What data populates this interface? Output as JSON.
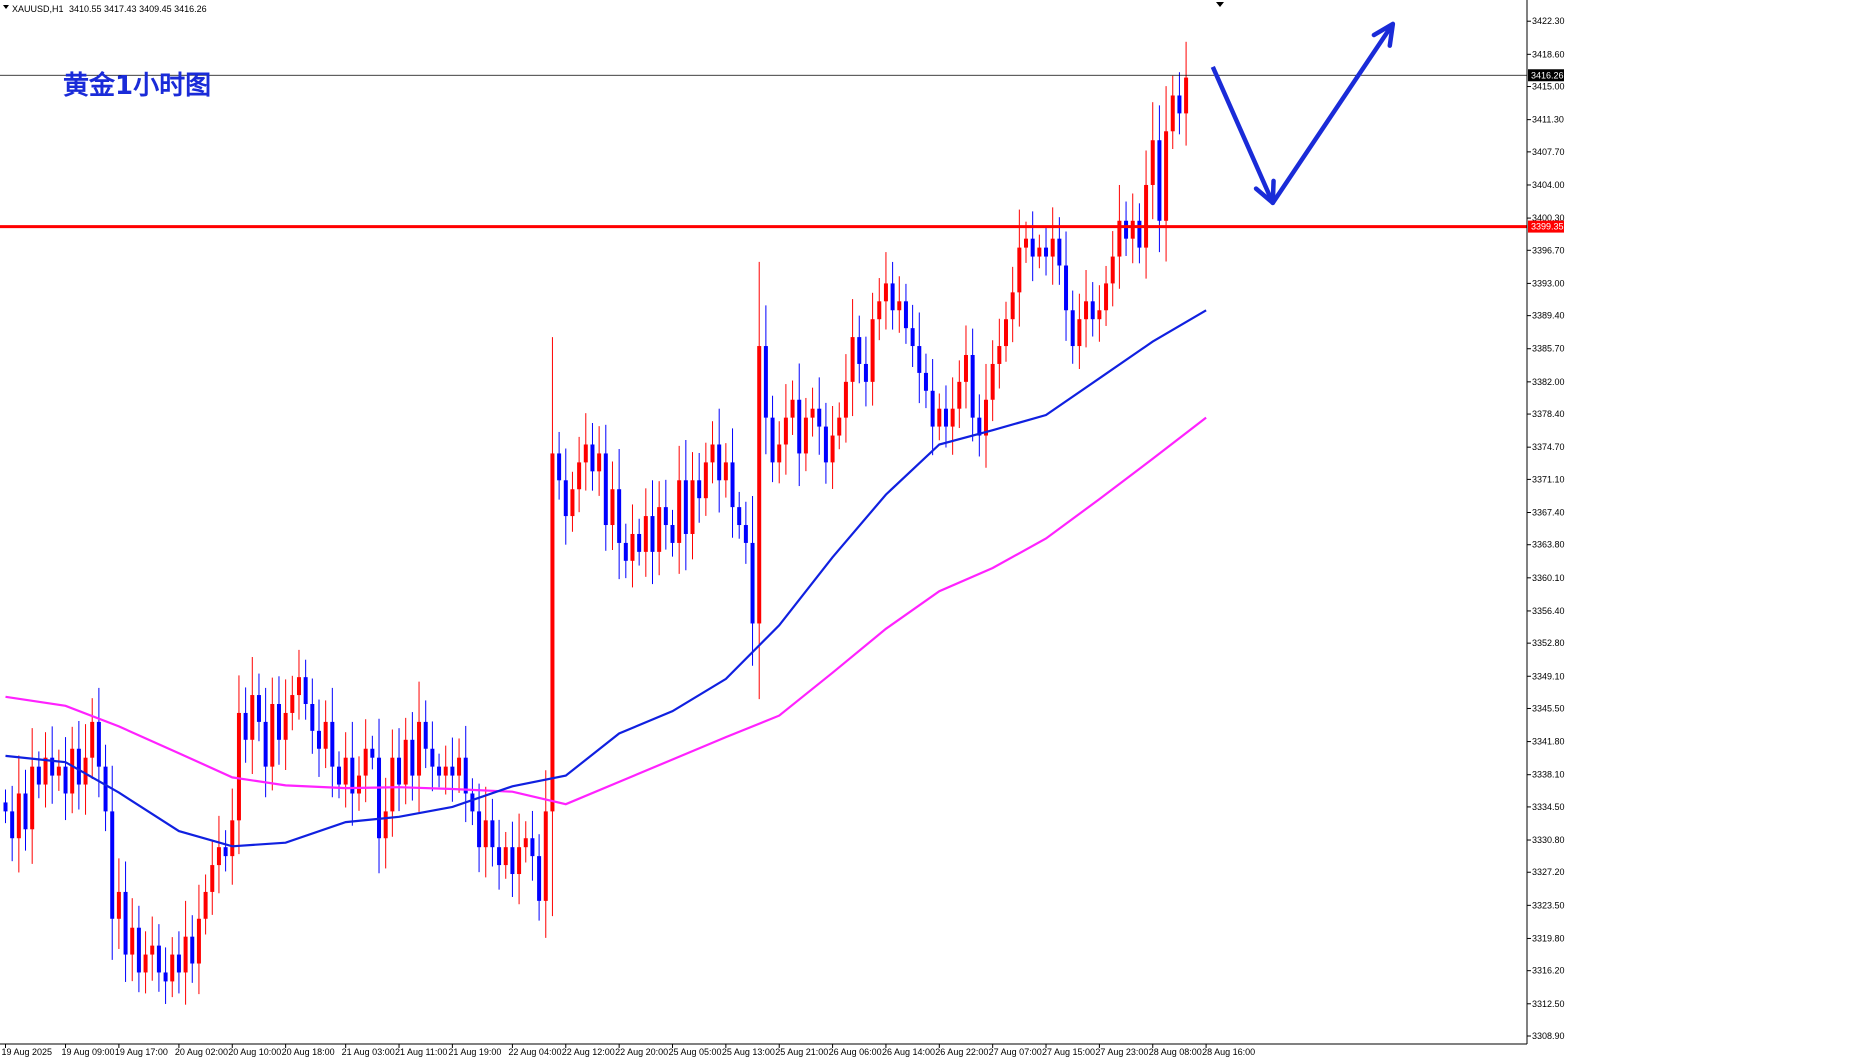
{
  "header": {
    "symbol_label": "XAUUSD,H1",
    "ohlc_text": "3410.55 3417.43 3409.45 3416.26",
    "dropdown_icon": "triangle-down-icon"
  },
  "annotation_title": "黄金1小时图",
  "colors": {
    "bull": "#ff0000",
    "bear": "#0000ff",
    "ma_fast": "#1020e0",
    "ma_slow": "#ff22ff",
    "resistance": "#ff0000",
    "arrow": "#1a2bd8",
    "current_price_line": "#000000"
  },
  "chart_data": {
    "type": "candlestick",
    "timeframe": "H1",
    "ylim": [
      3308.9,
      3424.0
    ],
    "y_ticks": [
      "3422.30",
      "3418.60",
      "3415.00",
      "3411.30",
      "3407.70",
      "3404.00",
      "3400.30",
      "3396.70",
      "3393.00",
      "3389.40",
      "3385.70",
      "3382.00",
      "3378.40",
      "3374.70",
      "3371.10",
      "3367.40",
      "3363.80",
      "3360.10",
      "3356.40",
      "3352.80",
      "3349.10",
      "3345.50",
      "3341.80",
      "3338.10",
      "3334.50",
      "3330.80",
      "3327.20",
      "3323.50",
      "3319.80",
      "3316.20",
      "3312.50",
      "3308.90"
    ],
    "x_ticks": [
      {
        "label": "19 Aug 2025",
        "bar": 0
      },
      {
        "label": "19 Aug 09:00",
        "bar": 9
      },
      {
        "label": "19 Aug 17:00",
        "bar": 17
      },
      {
        "label": "20 Aug 02:00",
        "bar": 26
      },
      {
        "label": "20 Aug 10:00",
        "bar": 34
      },
      {
        "label": "20 Aug 18:00",
        "bar": 42
      },
      {
        "label": "21 Aug 03:00",
        "bar": 51
      },
      {
        "label": "21 Aug 11:00",
        "bar": 59
      },
      {
        "label": "21 Aug 19:00",
        "bar": 67
      },
      {
        "label": "22 Aug 04:00",
        "bar": 76
      },
      {
        "label": "22 Aug 12:00",
        "bar": 84
      },
      {
        "label": "22 Aug 20:00",
        "bar": 92
      },
      {
        "label": "25 Aug 05:00",
        "bar": 100
      },
      {
        "label": "25 Aug 13:00",
        "bar": 108
      },
      {
        "label": "25 Aug 21:00",
        "bar": 116
      },
      {
        "label": "26 Aug 06:00",
        "bar": 124
      },
      {
        "label": "26 Aug 14:00",
        "bar": 132
      },
      {
        "label": "26 Aug 22:00",
        "bar": 140
      },
      {
        "label": "27 Aug 07:00",
        "bar": 148
      },
      {
        "label": "27 Aug 15:00",
        "bar": 156
      },
      {
        "label": "27 Aug 23:00",
        "bar": 164
      },
      {
        "label": "28 Aug 08:00",
        "bar": 172
      },
      {
        "label": "28 Aug 16:00",
        "bar": 180
      }
    ],
    "closes": [
      3334,
      3331,
      3336,
      3332,
      3339,
      3337,
      3340,
      3338,
      3339,
      3336,
      3341,
      3337,
      3340,
      3344,
      3339,
      3334,
      3322,
      3325,
      3318,
      3321,
      3316,
      3318,
      3319,
      3316,
      3315,
      3318,
      3316,
      3320,
      3317,
      3322,
      3325,
      3328,
      3330,
      3329,
      3333,
      3345,
      3342,
      3347,
      3344,
      3339,
      3346,
      3342,
      3345,
      3347,
      3349,
      3346,
      3343,
      3341,
      3344,
      3339,
      3337,
      3340,
      3336,
      3338,
      3341,
      3340,
      3331,
      3334,
      3340,
      3337,
      3342,
      3338,
      3344,
      3341,
      3339,
      3338,
      3339,
      3338,
      3340,
      3336,
      3334,
      3330,
      3333,
      3330,
      3328,
      3330,
      3327,
      3330,
      3331,
      3329,
      3324,
      3334,
      3374,
      3371,
      3367,
      3370,
      3373,
      3375,
      3372,
      3374,
      3366,
      3370,
      3364,
      3362,
      3365,
      3363,
      3367,
      3363,
      3368,
      3366,
      3364,
      3371,
      3365,
      3371,
      3369,
      3373,
      3375,
      3371,
      3373,
      3368,
      3366,
      3364,
      3355,
      3386,
      3378,
      3373,
      3375,
      3378,
      3380,
      3374,
      3378,
      3379,
      3377,
      3373,
      3376,
      3378,
      3382,
      3387,
      3384,
      3382,
      3389,
      3391,
      3393,
      3390,
      3391,
      3388,
      3386,
      3383,
      3381,
      3377,
      3379,
      3377,
      3379,
      3382,
      3385,
      3378,
      3376,
      3380,
      3384,
      3386,
      3389,
      3392,
      3397,
      3398,
      3396,
      3397,
      3396,
      3398,
      3395,
      3390,
      3386,
      3389,
      3391,
      3389,
      3390,
      3393,
      3396,
      3400,
      3398,
      3400,
      3397,
      3404,
      3409,
      3400,
      3410,
      3414,
      3412,
      3416
    ],
    "ma_fast": [
      [
        0,
        3340.2
      ],
      [
        9,
        3339.5
      ],
      [
        17,
        3336.1
      ],
      [
        26,
        3331.8
      ],
      [
        34,
        3330.1
      ],
      [
        42,
        3330.5
      ],
      [
        51,
        3332.8
      ],
      [
        59,
        3333.4
      ],
      [
        67,
        3334.5
      ],
      [
        76,
        3336.8
      ],
      [
        84,
        3338.0
      ],
      [
        92,
        3342.7
      ],
      [
        100,
        3345.2
      ],
      [
        108,
        3348.8
      ],
      [
        116,
        3354.8
      ],
      [
        124,
        3362.4
      ],
      [
        132,
        3369.4
      ],
      [
        140,
        3375.0
      ],
      [
        148,
        3376.6
      ],
      [
        156,
        3378.3
      ],
      [
        164,
        3382.4
      ],
      [
        172,
        3386.5
      ],
      [
        180,
        3390.0
      ]
    ],
    "ma_slow": [
      [
        0,
        3346.8
      ],
      [
        9,
        3345.8
      ],
      [
        17,
        3343.5
      ],
      [
        26,
        3340.5
      ],
      [
        34,
        3337.8
      ],
      [
        42,
        3336.9
      ],
      [
        51,
        3336.6
      ],
      [
        59,
        3336.7
      ],
      [
        67,
        3336.5
      ],
      [
        76,
        3336.2
      ],
      [
        84,
        3334.8
      ],
      [
        92,
        3337.3
      ],
      [
        100,
        3339.8
      ],
      [
        108,
        3342.3
      ],
      [
        116,
        3344.7
      ],
      [
        124,
        3349.5
      ],
      [
        132,
        3354.4
      ],
      [
        140,
        3358.6
      ],
      [
        148,
        3361.2
      ],
      [
        156,
        3364.5
      ],
      [
        164,
        3368.9
      ],
      [
        172,
        3373.4
      ],
      [
        180,
        3378.0
      ]
    ],
    "resistance": {
      "value": 3399.35,
      "label": "3399.35"
    },
    "current_price": {
      "value": 3416.26,
      "label": "3416.26"
    },
    "forecast_arrow": [
      [
        181,
        3417.2
      ],
      [
        190,
        3402.0
      ],
      [
        208,
        3422.0
      ]
    ]
  }
}
